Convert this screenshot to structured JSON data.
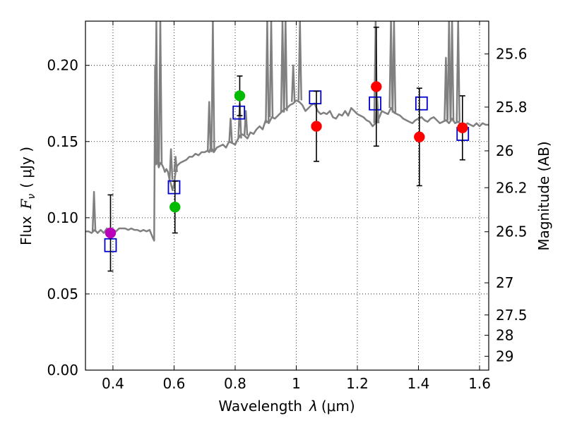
{
  "chart_data": {
    "type": "scatter",
    "xlabel": "Wavelength",
    "xlabel_symbol": "λ",
    "xlabel_unit": "(μm)",
    "ylabel": "Flux",
    "ylabel_symbol": "F",
    "ylabel_subscript": "ν",
    "ylabel_unit": "( μJy )",
    "y2label": "Magnitude (AB)",
    "xlim": [
      0.31,
      1.63
    ],
    "ylim": [
      0.0,
      0.229
    ],
    "grid": true,
    "x_ticks": [
      0.4,
      0.6,
      0.8,
      1.0,
      1.2,
      1.4,
      1.6
    ],
    "x_tick_labels": [
      "0.4",
      "0.6",
      "0.8",
      "1",
      "1.2",
      "1.4",
      "1.6"
    ],
    "y_ticks": [
      0.0,
      0.05,
      0.1,
      0.15,
      0.2
    ],
    "y_tick_labels": [
      "0.00",
      "0.05",
      "0.10",
      "0.15",
      "0.20"
    ],
    "y2_ticks": [
      {
        "label": "25.6",
        "flux": 0.2075
      },
      {
        "label": "25.8",
        "flux": 0.1726
      },
      {
        "label": "26",
        "flux": 0.1439
      },
      {
        "label": "26.2",
        "flux": 0.1197
      },
      {
        "label": "26.5",
        "flux": 0.0908
      },
      {
        "label": "27",
        "flux": 0.0573
      },
      {
        "label": "27.5",
        "flux": 0.0362
      },
      {
        "label": "28",
        "flux": 0.0229
      },
      {
        "label": "29",
        "flux": 0.0091
      }
    ],
    "series": [
      {
        "name": "model template",
        "kind": "line",
        "color": "#808080",
        "x": [
          0.31,
          0.32,
          0.33,
          0.34,
          0.35,
          0.36,
          0.37,
          0.38,
          0.39,
          0.4,
          0.41,
          0.42,
          0.43,
          0.44,
          0.45,
          0.46,
          0.47,
          0.48,
          0.49,
          0.5,
          0.51,
          0.52,
          0.53,
          0.535,
          0.538,
          0.541,
          0.545,
          0.55,
          0.555,
          0.56,
          0.565,
          0.57,
          0.575,
          0.58,
          0.585,
          0.59,
          0.595,
          0.6,
          0.605,
          0.61,
          0.62,
          0.63,
          0.64,
          0.65,
          0.66,
          0.67,
          0.68,
          0.69,
          0.7,
          0.71,
          0.715,
          0.72,
          0.725,
          0.73,
          0.74,
          0.75,
          0.76,
          0.77,
          0.78,
          0.79,
          0.8,
          0.81,
          0.82,
          0.83,
          0.84,
          0.85,
          0.86,
          0.87,
          0.88,
          0.89,
          0.9,
          0.91,
          0.92,
          0.93,
          0.94,
          0.95,
          0.96,
          0.97,
          0.98,
          0.99,
          1.0,
          1.01,
          1.02,
          1.03,
          1.04,
          1.05,
          1.06,
          1.07,
          1.08,
          1.09,
          1.1,
          1.11,
          1.12,
          1.13,
          1.14,
          1.15,
          1.16,
          1.17,
          1.18,
          1.19,
          1.2,
          1.21,
          1.22,
          1.23,
          1.24,
          1.25,
          1.26,
          1.27,
          1.28,
          1.29,
          1.3,
          1.31,
          1.32,
          1.33,
          1.34,
          1.35,
          1.36,
          1.37,
          1.38,
          1.39,
          1.4,
          1.41,
          1.42,
          1.43,
          1.44,
          1.45,
          1.46,
          1.47,
          1.48,
          1.49,
          1.5,
          1.51,
          1.52,
          1.53,
          1.54,
          1.55,
          1.56,
          1.57,
          1.58,
          1.59,
          1.6,
          1.61,
          1.62,
          1.63
        ],
        "y": [
          0.091,
          0.091,
          0.09,
          0.092,
          0.09,
          0.092,
          0.09,
          0.093,
          0.09,
          0.092,
          0.091,
          0.093,
          0.093,
          0.093,
          0.092,
          0.093,
          0.092,
          0.092,
          0.091,
          0.092,
          0.091,
          0.092,
          0.087,
          0.085,
          0.2,
          0.135,
          0.138,
          0.133,
          0.136,
          0.135,
          0.133,
          0.13,
          0.132,
          0.13,
          0.125,
          0.122,
          0.118,
          0.122,
          0.13,
          0.134,
          0.136,
          0.137,
          0.138,
          0.14,
          0.14,
          0.142,
          0.141,
          0.143,
          0.143,
          0.144,
          0.143,
          0.146,
          0.145,
          0.143,
          0.146,
          0.147,
          0.148,
          0.146,
          0.15,
          0.149,
          0.148,
          0.152,
          0.155,
          0.154,
          0.152,
          0.156,
          0.155,
          0.158,
          0.16,
          0.158,
          0.164,
          0.162,
          0.166,
          0.165,
          0.167,
          0.169,
          0.171,
          0.172,
          0.174,
          0.175,
          0.177,
          0.176,
          0.174,
          0.17,
          0.172,
          0.174,
          0.175,
          0.17,
          0.168,
          0.169,
          0.168,
          0.17,
          0.166,
          0.165,
          0.168,
          0.167,
          0.17,
          0.167,
          0.172,
          0.17,
          0.168,
          0.167,
          0.166,
          0.164,
          0.163,
          0.16,
          0.162,
          0.165,
          0.17,
          0.169,
          0.168,
          0.172,
          0.169,
          0.168,
          0.167,
          0.165,
          0.164,
          0.163,
          0.162,
          0.164,
          0.165,
          0.166,
          0.164,
          0.163,
          0.165,
          0.166,
          0.164,
          0.162,
          0.163,
          0.164,
          0.162,
          0.165,
          0.162,
          0.163,
          0.161,
          0.16,
          0.162,
          0.161,
          0.16,
          0.162,
          0.16,
          0.162,
          0.161,
          0.161
        ]
      },
      {
        "name": "model spectral lines",
        "kind": "spikes",
        "color": "#808080",
        "x": [
          0.338,
          0.542,
          0.555,
          0.59,
          0.605,
          0.715,
          0.727,
          0.785,
          0.815,
          0.835,
          0.905,
          0.918,
          0.955,
          0.965,
          0.99,
          1.012,
          1.26,
          1.265,
          1.31,
          1.32,
          1.49,
          1.5,
          1.51,
          1.53
        ],
        "base": [
          0.091,
          0.135,
          0.135,
          0.125,
          0.13,
          0.144,
          0.143,
          0.149,
          0.152,
          0.154,
          0.162,
          0.166,
          0.169,
          0.17,
          0.176,
          0.177,
          0.162,
          0.162,
          0.172,
          0.169,
          0.163,
          0.164,
          0.163,
          0.163
        ],
        "peak": [
          0.117,
          0.229,
          0.229,
          0.145,
          0.14,
          0.176,
          0.229,
          0.165,
          0.175,
          0.17,
          0.229,
          0.229,
          0.229,
          0.229,
          0.2,
          0.229,
          0.229,
          0.178,
          0.229,
          0.229,
          0.205,
          0.229,
          0.229,
          0.229
        ]
      },
      {
        "name": "model photometry",
        "kind": "open-square",
        "color": "#0000cc",
        "x": [
          0.392,
          0.6,
          0.812,
          1.062,
          1.258,
          1.41,
          1.545
        ],
        "y": [
          0.082,
          0.12,
          0.169,
          0.179,
          0.175,
          0.175,
          0.155
        ]
      },
      {
        "name": "observed photometry",
        "kind": "filled-circle",
        "x": [
          0.392,
          0.603,
          0.815,
          1.066,
          1.262,
          1.403,
          1.544
        ],
        "y": [
          0.09,
          0.107,
          0.18,
          0.16,
          0.186,
          0.153,
          0.159
        ],
        "yerr": [
          0.025,
          0.017,
          0.013,
          0.023,
          0.039,
          0.032,
          0.021
        ],
        "colors": [
          "#bb00bb",
          "#00bb00",
          "#00bb00",
          "#ff0000",
          "#ff0000",
          "#ff0000",
          "#ff0000"
        ]
      }
    ]
  }
}
